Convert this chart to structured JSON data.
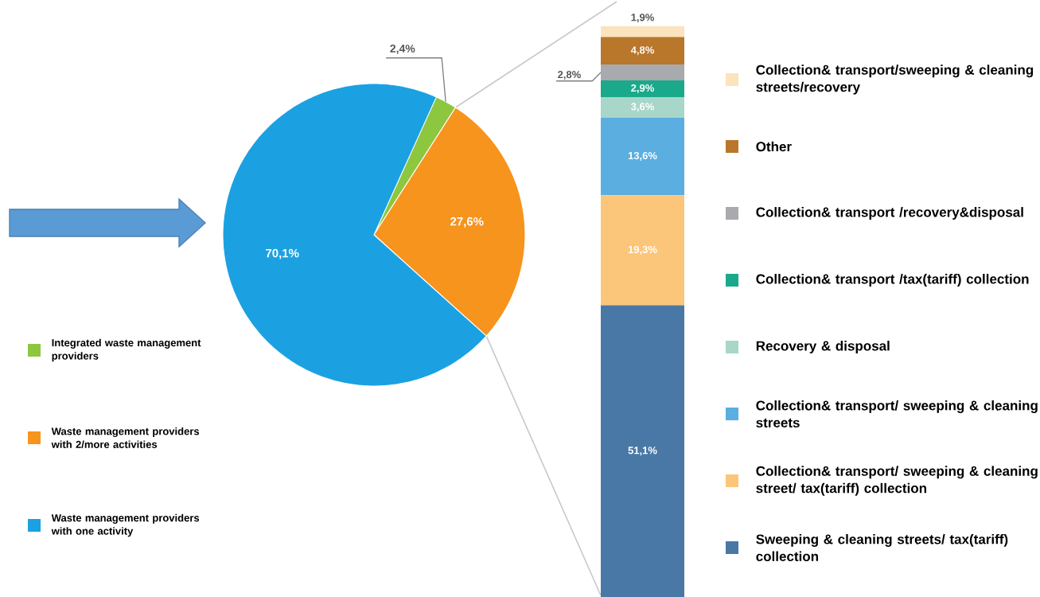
{
  "chart_data": [
    {
      "type": "pie",
      "categories": [
        "Integrated waste management providers",
        "Waste management providers with 2/more activities",
        "Waste management providers with one activity"
      ],
      "values": [
        2.4,
        27.6,
        70.1
      ],
      "colors": [
        "#8dc63f",
        "#f7941d",
        "#1ba1e2"
      ],
      "value_labels": [
        "2,4%",
        "27,6%",
        "70,1%"
      ],
      "legend": "left"
    },
    {
      "type": "bar",
      "stacked": true,
      "categories": [
        null
      ],
      "legend": "right",
      "series": [
        {
          "name": "Sweeping & cleaning streets/ tax(tariff) collection",
          "color": "#4a78a6",
          "values": [
            51.1
          ],
          "value_labels": [
            "51,1%"
          ]
        },
        {
          "name": "Collection& transport/ sweeping & cleaning street/ tax(tariff) collection",
          "color": "#fcc67a",
          "values": [
            19.3
          ],
          "value_labels": [
            "19,3%"
          ]
        },
        {
          "name": "Collection& transport/ sweeping & cleaning streets",
          "color": "#5aaee0",
          "values": [
            13.6
          ],
          "value_labels": [
            "13,6%"
          ]
        },
        {
          "name": "Recovery & disposal",
          "color": "#a8d6c8",
          "values": [
            3.6
          ],
          "value_labels": [
            "3,6%"
          ]
        },
        {
          "name": "Collection& transport /tax(tariff) collection",
          "color": "#1aa98b",
          "values": [
            2.9
          ],
          "value_labels": [
            "2,9%"
          ]
        },
        {
          "name": "Collection& transport /recovery&disposal",
          "color": "#a8aaad",
          "values": [
            2.8
          ],
          "value_labels": [
            "2,8%"
          ]
        },
        {
          "name": "Other",
          "color": "#b8772b",
          "values": [
            4.8
          ],
          "value_labels": [
            "4,8%"
          ]
        },
        {
          "name": "Collection& transport/sweeping & cleaning streets/recovery",
          "color": "#fbe3bd",
          "values": [
            1.9
          ],
          "value_labels": [
            "1,9%"
          ]
        }
      ]
    }
  ]
}
